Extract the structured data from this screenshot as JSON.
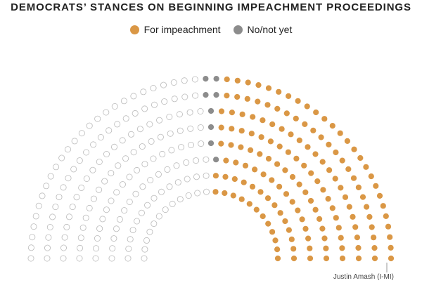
{
  "chart_data": {
    "type": "parliament",
    "title": "DEMOCRATS’ STANCES ON BEGINNING IMPEACHMENT PROCEEDINGS",
    "series": [
      {
        "name": "For impeachment",
        "color": "#da9745",
        "count": 151
      },
      {
        "name": "No/not yet",
        "color": "#8c8c8c",
        "count": 8
      },
      {
        "name": "",
        "color": "#ffffff",
        "count": 276
      }
    ],
    "annotation": "Justin Amash (I-MI)"
  }
}
